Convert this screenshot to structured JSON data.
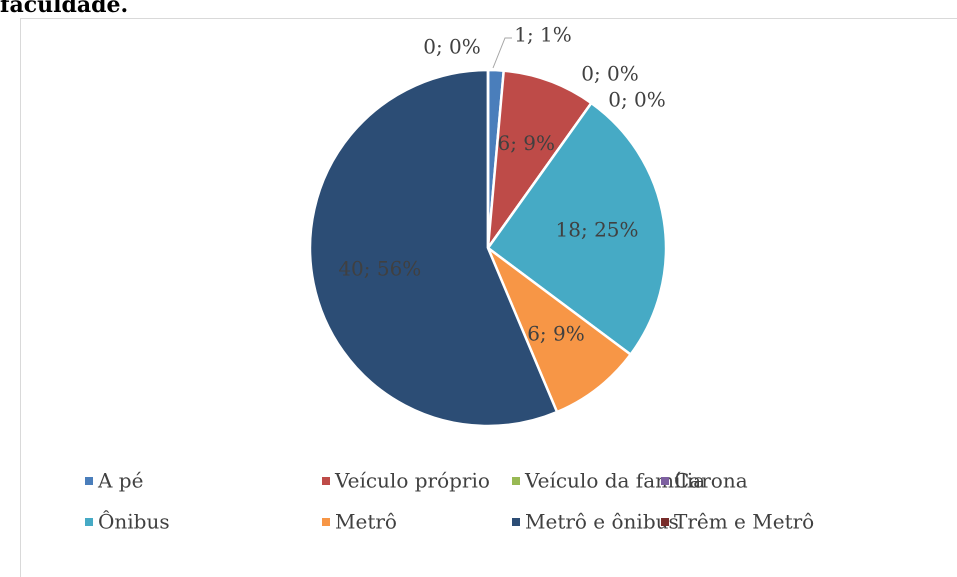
{
  "chart_data": {
    "type": "pie",
    "title": "faculdade.",
    "categories": [
      "A pé",
      "Veículo próprio",
      "Veículo da família",
      "Carona",
      "Ônibus",
      "Metrô",
      "Metrô e ônibus",
      "Trêm e Metrô"
    ],
    "values": [
      1,
      6,
      0,
      0,
      18,
      6,
      40,
      0
    ],
    "value_labels": [
      "1; 1%",
      "6; 9%",
      "0; 0%",
      "0; 0%",
      "18; 25%",
      "6; 9%",
      "40; 56%",
      "0; 0%"
    ],
    "colors": [
      "#4a7ebb",
      "#be4b48",
      "#98b954",
      "#7d60a0",
      "#46aac5",
      "#f79646",
      "#2c4d75",
      "#772c2a"
    ],
    "legend": "bottom"
  }
}
